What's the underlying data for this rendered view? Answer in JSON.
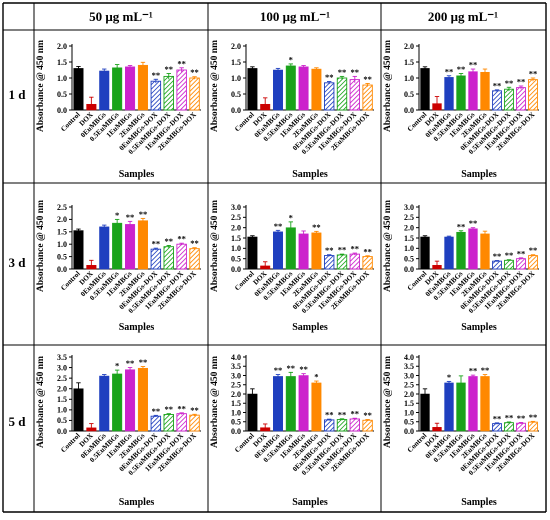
{
  "figure": {
    "column_headers": [
      "50 μg mL⁻¹",
      "100 μg mL⁻¹",
      "200 μg mL⁻¹"
    ],
    "row_headers": [
      "1 d",
      "3 d",
      "5 d"
    ],
    "ylabel": "Absorbance @ 450 nm",
    "xlabel": "Samples"
  },
  "categories": [
    "Control",
    "DOX",
    "0EuMBGs",
    "0.5EuMBGs",
    "1EuMBGs",
    "2EuMBGs",
    "0EuMBGs-DOX",
    "0.5EuMBGs-DOX",
    "1EuMBGs-DOX",
    "2EuMBGs-DOX"
  ],
  "colors": [
    "#000000",
    "#cc0000",
    "#1f3fbf",
    "#1aa31a",
    "#cc22cc",
    "#ff8800",
    "#1f3fbf",
    "#1aa31a",
    "#cc22cc",
    "#ff8800"
  ],
  "hatched": [
    false,
    false,
    false,
    false,
    false,
    false,
    true,
    true,
    true,
    true
  ],
  "chart_data": [
    {
      "type": "bar",
      "row": "1 d",
      "column": "50 μg mL⁻¹",
      "ylim": [
        0,
        2.0
      ],
      "yticks": [
        "0.0",
        "0.5",
        "1.0",
        "1.5",
        "2.0"
      ],
      "values": [
        1.3,
        0.18,
        1.22,
        1.32,
        1.35,
        1.4,
        0.9,
        1.05,
        1.25,
        1.0
      ],
      "errors": [
        0.06,
        0.22,
        0.06,
        0.1,
        0.04,
        0.09,
        0.06,
        0.09,
        0.07,
        0.04
      ],
      "annotations": [
        "",
        "",
        "",
        "",
        "",
        "",
        "**",
        "**",
        "**",
        "**"
      ]
    },
    {
      "type": "bar",
      "row": "1 d",
      "column": "100 μg mL⁻¹",
      "ylim": [
        0,
        2.0
      ],
      "yticks": [
        "0.0",
        "0.5",
        "1.0",
        "1.5",
        "2.0"
      ],
      "values": [
        1.3,
        0.18,
        1.25,
        1.38,
        1.35,
        1.28,
        0.85,
        1.0,
        0.95,
        0.78
      ],
      "errors": [
        0.05,
        0.2,
        0.05,
        0.06,
        0.04,
        0.04,
        0.04,
        0.05,
        0.1,
        0.05
      ],
      "annotations": [
        "",
        "",
        "",
        "*",
        "",
        "",
        "**",
        "**",
        "**",
        "**"
      ]
    },
    {
      "type": "bar",
      "row": "1 d",
      "column": "200 μg mL⁻¹",
      "ylim": [
        0,
        2.0
      ],
      "yticks": [
        "0.0",
        "0.5",
        "1.0",
        "1.5",
        "2.0"
      ],
      "values": [
        1.3,
        0.2,
        1.02,
        1.07,
        1.2,
        1.18,
        0.6,
        0.65,
        0.7,
        0.95
      ],
      "errors": [
        0.05,
        0.22,
        0.05,
        0.07,
        0.08,
        0.1,
        0.03,
        0.06,
        0.05,
        0.05
      ],
      "annotations": [
        "",
        "",
        "**",
        "**",
        "**",
        "",
        "**",
        "**",
        "**",
        "**"
      ]
    },
    {
      "type": "bar",
      "row": "3 d",
      "column": "50 μg mL⁻¹",
      "ylim": [
        0,
        2.5
      ],
      "yticks": [
        "0.0",
        "0.5",
        "1.0",
        "1.5",
        "2.0",
        "2.5"
      ],
      "values": [
        1.55,
        0.15,
        1.7,
        1.85,
        1.8,
        1.95,
        0.8,
        0.9,
        1.0,
        0.82
      ],
      "errors": [
        0.06,
        0.2,
        0.07,
        0.15,
        0.12,
        0.09,
        0.04,
        0.05,
        0.04,
        0.04
      ],
      "annotations": [
        "",
        "",
        "",
        "*",
        "**",
        "**",
        "**",
        "**",
        "**",
        "**"
      ]
    },
    {
      "type": "bar",
      "row": "3 d",
      "column": "100 μg mL⁻¹",
      "ylim": [
        0,
        3.0
      ],
      "yticks": [
        "0.0",
        "0.5",
        "1.0",
        "1.5",
        "2.0",
        "2.5",
        "3.0"
      ],
      "values": [
        1.55,
        0.15,
        1.8,
        2.0,
        1.7,
        1.75,
        0.65,
        0.68,
        0.72,
        0.6
      ],
      "errors": [
        0.06,
        0.2,
        0.07,
        0.28,
        0.14,
        0.07,
        0.04,
        0.04,
        0.05,
        0.04
      ],
      "annotations": [
        "",
        "",
        "**",
        "*",
        "",
        "**",
        "**",
        "**",
        "**",
        "**"
      ]
    },
    {
      "type": "bar",
      "row": "3 d",
      "column": "200 μg mL⁻¹",
      "ylim": [
        0,
        3.0
      ],
      "yticks": [
        "0.0",
        "0.5",
        "1.0",
        "1.5",
        "2.0",
        "2.5",
        "3.0"
      ],
      "values": [
        1.55,
        0.18,
        1.55,
        1.78,
        1.95,
        1.7,
        0.38,
        0.42,
        0.5,
        0.65
      ],
      "errors": [
        0.06,
        0.2,
        0.04,
        0.07,
        0.05,
        0.13,
        0.03,
        0.03,
        0.04,
        0.04
      ],
      "annotations": [
        "",
        "",
        "",
        "**",
        "**",
        "",
        "**",
        "**",
        "**",
        "**"
      ]
    },
    {
      "type": "bar",
      "row": "5 d",
      "column": "50 μg mL⁻¹",
      "ylim": [
        0,
        3.5
      ],
      "yticks": [
        "0.0",
        "0.5",
        "1.0",
        "1.5",
        "2.0",
        "2.5",
        "3.0",
        "3.5"
      ],
      "values": [
        2.0,
        0.15,
        2.6,
        2.7,
        2.9,
        2.97,
        0.7,
        0.78,
        0.82,
        0.75
      ],
      "errors": [
        0.28,
        0.2,
        0.07,
        0.18,
        0.1,
        0.08,
        0.04,
        0.04,
        0.04,
        0.04
      ],
      "annotations": [
        "",
        "",
        "",
        "*",
        "**",
        "**",
        "**",
        "**",
        "**",
        "**"
      ]
    },
    {
      "type": "bar",
      "row": "5 d",
      "column": "100 μg mL⁻¹",
      "ylim": [
        0,
        4.0
      ],
      "yticks": [
        "0.0",
        "0.5",
        "1.0",
        "1.5",
        "2.0",
        "2.5",
        "3.0",
        "3.5",
        "4.0"
      ],
      "values": [
        2.0,
        0.18,
        2.95,
        2.95,
        3.0,
        2.6,
        0.6,
        0.62,
        0.65,
        0.58
      ],
      "errors": [
        0.28,
        0.2,
        0.1,
        0.22,
        0.1,
        0.1,
        0.04,
        0.04,
        0.04,
        0.04
      ],
      "annotations": [
        "",
        "",
        "**",
        "**",
        "**",
        "*",
        "**",
        "**",
        "**",
        "**"
      ]
    },
    {
      "type": "bar",
      "row": "5 d",
      "column": "200 μg mL⁻¹",
      "ylim": [
        0,
        4.0
      ],
      "yticks": [
        "0.0",
        "0.5",
        "1.0",
        "1.5",
        "2.0",
        "2.5",
        "3.0",
        "3.5",
        "4.0"
      ],
      "values": [
        2.0,
        0.2,
        2.6,
        2.6,
        2.95,
        2.95,
        0.4,
        0.45,
        0.42,
        0.48
      ],
      "errors": [
        0.28,
        0.22,
        0.08,
        0.38,
        0.07,
        0.1,
        0.04,
        0.04,
        0.04,
        0.04
      ],
      "annotations": [
        "",
        "",
        "*",
        "",
        "**",
        "**",
        "**",
        "**",
        "**",
        "**"
      ]
    }
  ]
}
